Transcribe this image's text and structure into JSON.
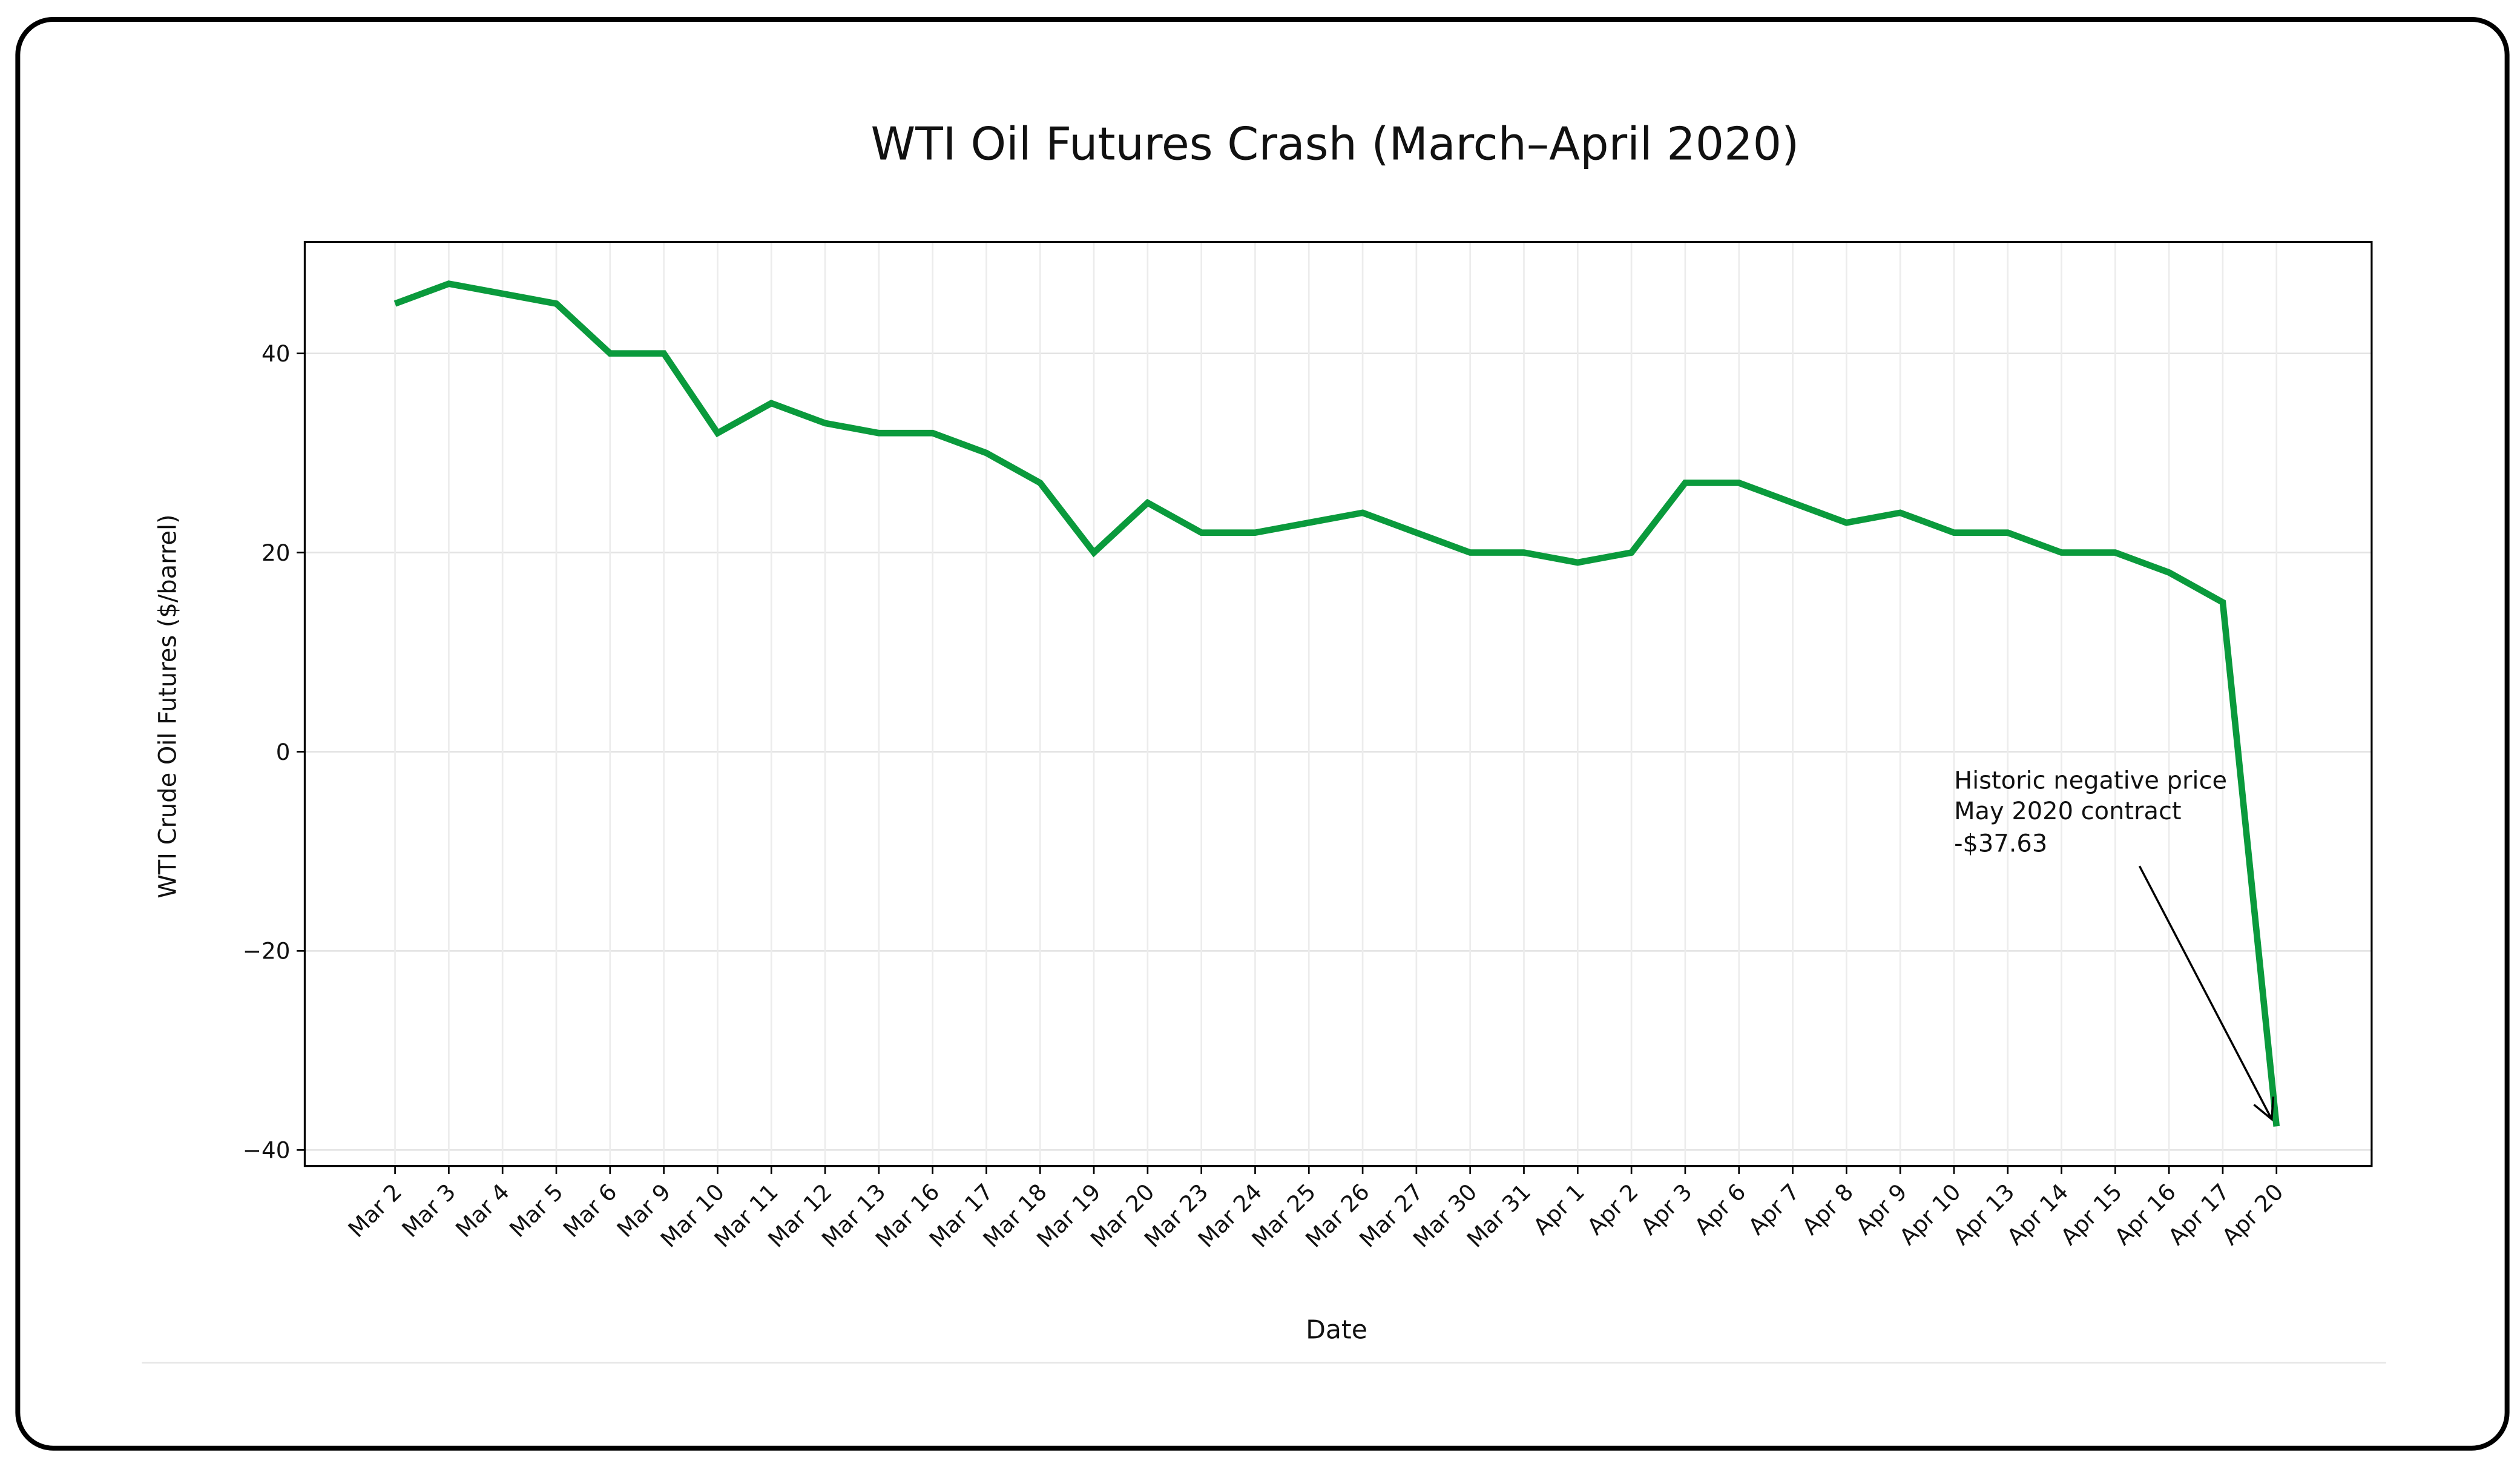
{
  "chart_data": {
    "type": "line",
    "title": "WTI Oil Futures Crash (March–April 2020)",
    "xlabel": "Date",
    "ylabel": "WTI Crude Oil Futures ($/barrel)",
    "categories": [
      "Mar 2",
      "Mar 3",
      "Mar 4",
      "Mar 5",
      "Mar 6",
      "Mar 9",
      "Mar 10",
      "Mar 11",
      "Mar 12",
      "Mar 13",
      "Mar 16",
      "Mar 17",
      "Mar 18",
      "Mar 19",
      "Mar 20",
      "Mar 23",
      "Mar 24",
      "Mar 25",
      "Mar 26",
      "Mar 27",
      "Mar 30",
      "Mar 31",
      "Apr 1",
      "Apr 2",
      "Apr 3",
      "Apr 6",
      "Apr 7",
      "Apr 8",
      "Apr 9",
      "Apr 10",
      "Apr 13",
      "Apr 14",
      "Apr 15",
      "Apr 16",
      "Apr 17",
      "Apr 20"
    ],
    "series": [
      {
        "values": [
          45,
          47,
          46,
          45,
          40,
          40,
          32,
          35,
          33,
          32,
          32,
          30,
          27,
          20,
          25,
          22,
          22,
          23,
          24,
          22,
          20,
          20,
          19,
          20,
          27,
          27,
          25,
          23,
          24,
          22,
          22,
          20,
          20,
          18,
          15,
          -37.63
        ],
        "color": "#0a9a3c"
      }
    ],
    "yticks": [
      -40,
      -20,
      0,
      20,
      40
    ],
    "ytick_labels": [
      "−40",
      "−20",
      "0",
      "20",
      "40"
    ],
    "ylim": [
      -41.6,
      51.2
    ],
    "grid": true,
    "annotation": {
      "lines": [
        "Historic negative price",
        "May 2020 contract",
        "-$37.63"
      ],
      "target": "Apr 20",
      "target_value": -37.63
    }
  }
}
